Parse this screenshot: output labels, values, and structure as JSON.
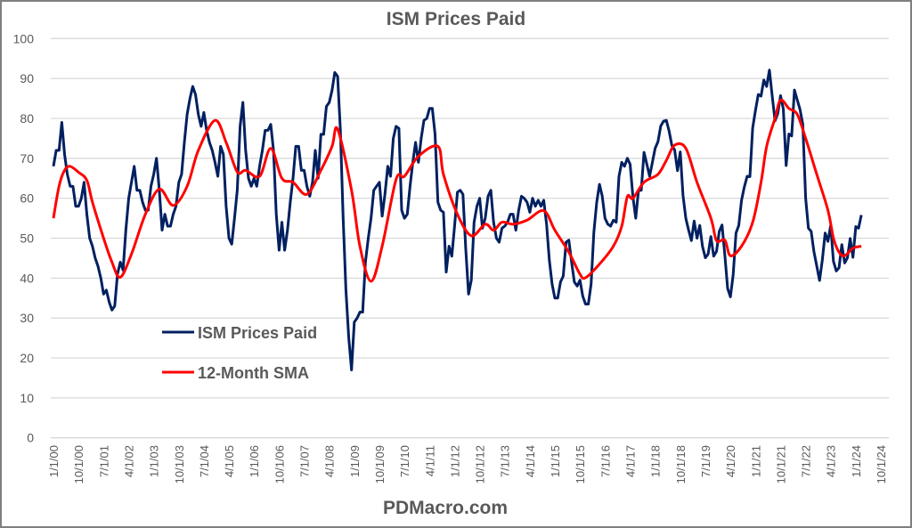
{
  "chart_data": {
    "type": "line",
    "title": "ISM Prices Paid",
    "footer": "PDMacro.com",
    "xlabel": "",
    "ylabel": "",
    "ylim": [
      0,
      100
    ],
    "y_ticks": [
      "0",
      "10",
      "20",
      "30",
      "40",
      "50",
      "60",
      "70",
      "80",
      "90",
      "100"
    ],
    "x_tick_labels": [
      "1/1/00",
      "10/1/00",
      "7/1/01",
      "4/1/02",
      "1/1/03",
      "10/1/03",
      "7/1/04",
      "4/1/05",
      "1/1/06",
      "10/1/06",
      "7/1/07",
      "4/1/08",
      "1/1/09",
      "10/1/09",
      "7/1/10",
      "4/1/11",
      "1/1/12",
      "10/1/12",
      "7/1/13",
      "4/1/14",
      "1/1/15",
      "10/1/15",
      "7/1/16",
      "4/1/17",
      "1/1/18",
      "10/1/18",
      "7/1/19",
      "4/1/20",
      "1/1/21",
      "10/1/21",
      "7/1/22",
      "4/1/23",
      "1/1/24",
      "10/1/24"
    ],
    "grid": true,
    "legend": "left-bottom-inside",
    "series": [
      {
        "name": "ISM Prices Paid",
        "color": "#002060",
        "x_first": "1/1/00",
        "frequency": "monthly",
        "values": [
          68,
          72,
          72,
          79,
          71,
          66,
          63,
          63,
          58,
          58,
          60,
          64,
          56,
          50,
          48,
          45,
          43,
          40,
          36,
          37,
          34,
          32,
          33,
          41,
          44,
          42,
          52,
          60,
          64,
          68,
          62,
          62,
          59,
          57,
          57,
          63,
          66,
          70,
          62,
          52,
          56,
          53,
          53,
          56,
          58,
          64,
          66,
          74,
          81,
          85,
          88,
          86,
          81,
          78,
          81.5,
          77,
          74,
          72,
          69,
          65.5,
          73,
          71,
          58,
          50,
          48.5,
          55,
          62,
          78,
          84,
          72,
          65,
          63,
          65,
          63,
          68,
          72,
          77,
          77,
          78.5,
          72,
          56,
          47,
          54,
          47,
          52,
          59,
          65,
          73,
          73,
          67,
          67,
          63,
          60.5,
          64,
          72,
          65,
          76,
          76,
          83,
          84,
          87,
          91.5,
          90.5,
          77,
          55,
          37,
          25,
          17,
          29,
          30,
          31.5,
          31.5,
          44,
          50,
          55,
          62,
          63,
          64,
          55.5,
          61,
          68,
          65.5,
          75,
          78,
          77.5,
          57,
          55,
          56,
          63,
          69,
          74,
          69,
          75,
          79.5,
          80,
          82.5,
          82.5,
          76,
          59,
          57,
          56.5,
          41.5,
          48,
          45.5,
          53,
          61.5,
          62,
          61,
          47.5,
          36,
          39.5,
          54,
          58,
          60,
          52.5,
          55,
          60.5,
          62,
          54,
          50,
          49,
          52.5,
          53,
          54,
          56,
          56,
          52,
          57,
          60.5,
          60,
          59,
          56.5,
          60,
          58,
          59.5,
          58,
          59.5,
          53.5,
          44.5,
          38.5,
          35,
          35,
          39,
          40.5,
          49,
          49.5,
          44,
          39,
          38,
          39.5,
          35.5,
          33.5,
          33.5,
          38.5,
          51.5,
          59,
          63.5,
          60.5,
          55,
          53.5,
          53,
          54.5,
          54,
          65.5,
          69,
          68,
          70,
          68.5,
          60.5,
          55,
          62,
          62,
          71.5,
          68.5,
          65.5,
          69,
          72.5,
          74.2,
          78.1,
          79.3,
          79.5,
          76.8,
          73.2,
          72.1,
          66.9,
          71.6,
          60.7,
          54.9,
          52,
          49.4,
          54.3,
          50,
          53.2,
          47.9,
          45.1,
          46,
          50.4,
          45.5,
          46.7,
          51.7,
          53.3,
          45.9,
          37.4,
          35.3,
          40.8,
          51.3,
          53.2,
          59.5,
          62.8,
          65.5,
          65.4,
          77.6,
          82.1,
          86,
          85.6,
          89.6,
          88,
          92.1,
          85.7,
          79.4,
          81.2,
          85.7,
          82.4,
          68.2,
          76.1,
          75.6,
          87.1,
          84.6,
          82.2,
          78.5,
          60,
          52.5,
          51.7,
          46.6,
          43,
          39.4,
          44.5,
          51.3,
          49.2,
          53.2,
          44.2,
          41.8,
          42.6,
          48.4,
          43.8,
          45.1,
          49.9,
          45.2,
          52.9,
          52.5,
          55.8
        ]
      },
      {
        "name": "12-Month SMA",
        "color": "#ff0000",
        "x": [
          "1/1/00",
          "3/1/00",
          "5/1/00",
          "7/1/00",
          "10/1/00",
          "1/1/01",
          "3/1/01",
          "7/1/01",
          "10/1/01",
          "1/1/02",
          "5/1/02",
          "10/1/02",
          "3/1/03",
          "8/1/03",
          "1/1/04",
          "5/1/04",
          "11/1/04",
          "3/1/05",
          "7/1/05",
          "10/1/05",
          "3/1/06",
          "7/1/06",
          "11/1/06",
          "3/1/07",
          "8/1/07",
          "1/1/08",
          "5/1/08",
          "7/1/08",
          "12/1/08",
          "3/1/09",
          "7/1/09",
          "11/1/09",
          "4/1/10",
          "7/1/10",
          "12/1/10",
          "7/1/11",
          "9/1/11",
          "2/1/12",
          "7/1/12",
          "12/1/12",
          "3/1/13",
          "6/1/13",
          "10/1/13",
          "3/1/14",
          "9/1/14",
          "1/1/15",
          "6/1/15",
          "10/1/15",
          "12/1/15",
          "5/1/16",
          "10/1/16",
          "1/1/17",
          "3/1/17",
          "5/1/17",
          "9/1/17",
          "2/1/18",
          "5/1/18",
          "8/1/18",
          "12/1/18",
          "4/1/19",
          "9/1/19",
          "11/1/19",
          "2/1/20",
          "4/1/20",
          "8/1/20",
          "12/1/20",
          "3/1/21",
          "5/1/21",
          "8/1/21",
          "10/1/21",
          "1/1/22",
          "4/1/22",
          "7/1/22",
          "11/1/22",
          "3/1/23",
          "5/1/23",
          "7/1/23",
          "9/1/23",
          "12/1/23",
          "3/1/24"
        ],
        "values": [
          55,
          63,
          67,
          68,
          66.5,
          64.5,
          59,
          50,
          44,
          40.2,
          46,
          56,
          62.3,
          58.2,
          63,
          72,
          79.5,
          74,
          66.6,
          67,
          65.5,
          72.5,
          65,
          64,
          61,
          67,
          73,
          77.3,
          62,
          48,
          39.2,
          48,
          64.7,
          65.5,
          70.5,
          73,
          66,
          56,
          50.6,
          53.5,
          52,
          54,
          53.5,
          54.5,
          56.9,
          52,
          46.5,
          41,
          40.1,
          43.5,
          48,
          53,
          60.4,
          60,
          64,
          66,
          69.5,
          73.3,
          72.5,
          64,
          55,
          49.4,
          49.5,
          45.6,
          48,
          54,
          64,
          73,
          80,
          84.6,
          82.5,
          81,
          75,
          66,
          57,
          50,
          46.5,
          45.6,
          47.5,
          48
        ]
      }
    ]
  }
}
